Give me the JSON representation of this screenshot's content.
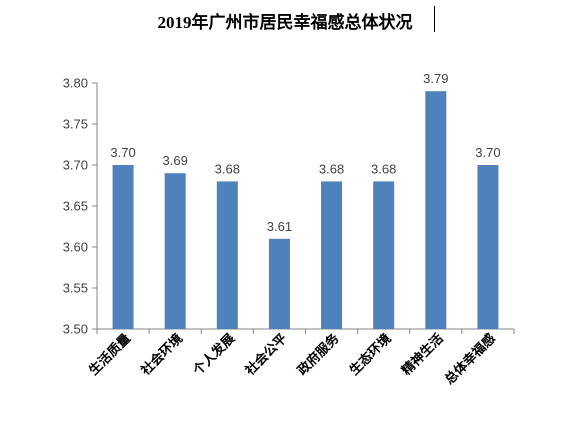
{
  "chart_data": {
    "type": "bar",
    "title": "2019年广州市居民幸福感总体状况",
    "categories": [
      "生活质量",
      "社会环境",
      "个人发展",
      "社会公平",
      "政府服务",
      "生态环境",
      "精神生活",
      "总体幸福感"
    ],
    "values": [
      3.7,
      3.69,
      3.68,
      3.61,
      3.68,
      3.68,
      3.79,
      3.7
    ],
    "data_labels": [
      "3.70",
      "3.69",
      "3.68",
      "3.61",
      "3.68",
      "3.68",
      "3.79",
      "3.70"
    ],
    "yticks": [
      "3.50",
      "3.55",
      "3.60",
      "3.65",
      "3.70",
      "3.75",
      "3.80"
    ],
    "ylim": [
      3.5,
      3.8
    ],
    "bar_color": "#4F81BD",
    "grid": false,
    "legend": "none",
    "xlabel": "",
    "ylabel": ""
  }
}
